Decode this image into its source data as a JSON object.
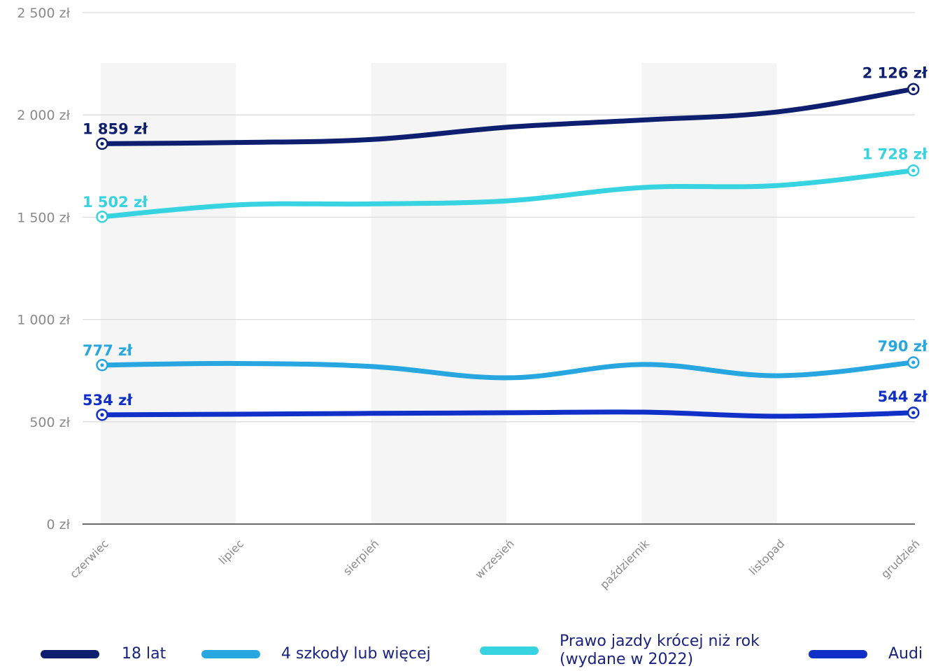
{
  "chart_data": {
    "type": "line",
    "categories": [
      "czerwiec",
      "lipiec",
      "sierpień",
      "wrzesień",
      "październik",
      "listopad",
      "grudzień"
    ],
    "ylim": [
      0,
      2500
    ],
    "yticks": [
      {
        "value": 0,
        "label": "0 zł"
      },
      {
        "value": 500,
        "label": "500 zł"
      },
      {
        "value": 1000,
        "label": "1 000 zł"
      },
      {
        "value": 1500,
        "label": "1 500 zł"
      },
      {
        "value": 2000,
        "label": "2 000 zł"
      },
      {
        "value": 2500,
        "label": "2 500 zł"
      }
    ],
    "grid": true,
    "legend_position": "bottom",
    "series": [
      {
        "name": "18 lat",
        "color": "#0d1f6e",
        "values": [
          1859,
          1865,
          1880,
          1940,
          1975,
          2015,
          2126
        ],
        "start_label": "1 859 zł",
        "end_label": "2 126 zł"
      },
      {
        "name": "4 szkody lub więcej",
        "color": "#27a6e0",
        "values": [
          777,
          785,
          770,
          715,
          780,
          725,
          790
        ],
        "start_label": "777 zł",
        "end_label": "790 zł"
      },
      {
        "name": "Prawo jazdy krócej niż rok (wydane w 2022)",
        "color": "#38d3e0",
        "values": [
          1502,
          1560,
          1565,
          1580,
          1645,
          1655,
          1728
        ],
        "start_label": "1 502 zł",
        "end_label": "1 728 zł"
      },
      {
        "name": "Audi",
        "color": "#1030c8",
        "values": [
          534,
          537,
          541,
          544,
          547,
          527,
          544
        ],
        "start_label": "534 zł",
        "end_label": "544 zł"
      }
    ]
  },
  "legend": {
    "item1": "18 lat",
    "item2": "4 szkody lub więcej",
    "item3_line1": "Prawo jazdy krócej niż rok",
    "item3_line2": "(wydane w 2022)",
    "item4": "Audi"
  }
}
